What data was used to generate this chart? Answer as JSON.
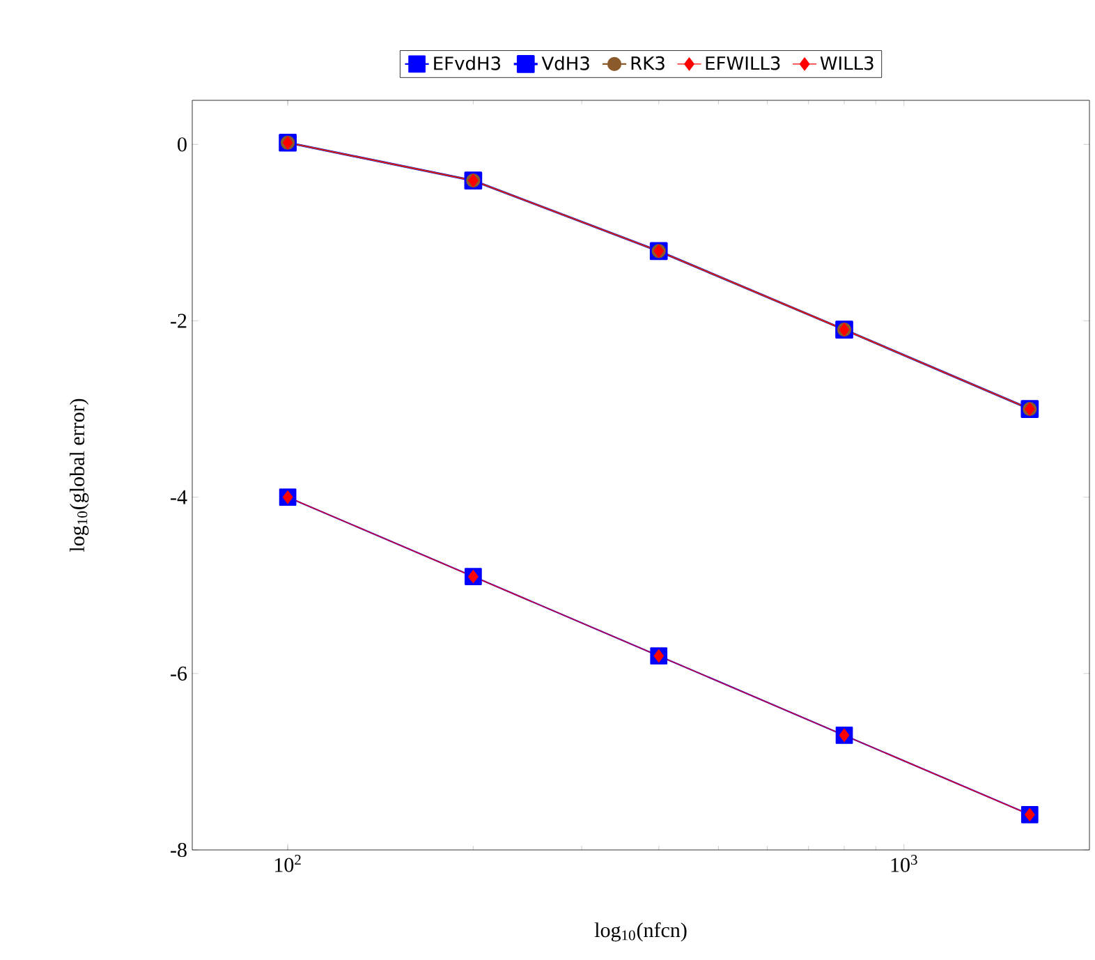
{
  "chart_data": {
    "type": "line",
    "xlabel": "log$_{10}$(nfcn)",
    "ylabel": "log$_{10}$(global error)",
    "log": "x",
    "grid": false,
    "legend": "top",
    "xlim": [
      70,
      2000
    ],
    "xticks": [
      {
        "value": 100,
        "label": "10$^{2}$"
      },
      {
        "value": 1000,
        "label": "10$^{3}$"
      }
    ],
    "ylim": [
      -8,
      0.5
    ],
    "yticks": [
      -8,
      -6,
      -4,
      -2,
      0
    ],
    "x": [
      100,
      200,
      400,
      800,
      1600
    ],
    "series": [
      {
        "name": "EFvdH3",
        "color": "#0000ff",
        "marker": "square",
        "values": [
          -4.0,
          -4.9,
          -5.8,
          -6.7,
          -7.6
        ]
      },
      {
        "name": "VdH3",
        "color": "#0000ff",
        "marker": "square",
        "values": [
          0.02,
          -0.41,
          -1.21,
          -2.1,
          -3.0
        ]
      },
      {
        "name": "RK3",
        "color": "#8b5a2b",
        "marker": "circle",
        "values": [
          0.02,
          -0.41,
          -1.21,
          -2.1,
          -3.0
        ]
      },
      {
        "name": "EFWILL3",
        "color": "#ff0000",
        "marker": "diamond",
        "values": [
          -4.0,
          -4.9,
          -5.8,
          -6.7,
          -7.6
        ]
      },
      {
        "name": "WILL3",
        "color": "#ff0000",
        "marker": "diamond",
        "values": [
          0.02,
          -0.41,
          -1.21,
          -2.1,
          -3.0
        ]
      }
    ]
  }
}
